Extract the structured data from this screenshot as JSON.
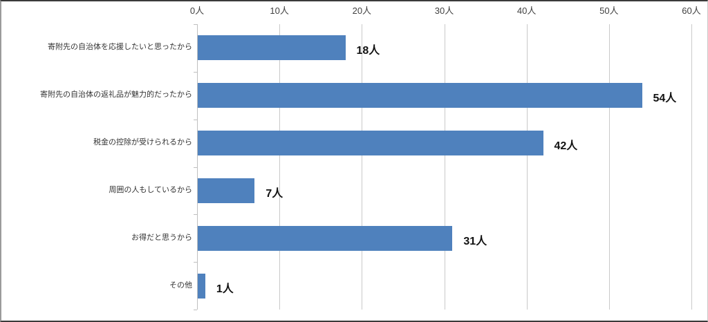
{
  "chart_data": {
    "type": "bar",
    "orientation": "horizontal",
    "title": "",
    "categories": [
      "寄附先の自治体を応援したいと思ったから",
      "寄附先の自治体の返礼品が魅力的だったから",
      "税金の控除が受けられるから",
      "周囲の人もしているから",
      "お得だと思うから",
      "その他"
    ],
    "values": [
      18,
      54,
      42,
      7,
      31,
      1
    ],
    "data_labels": [
      "18人",
      "54人",
      "42人",
      "7人",
      "31人",
      "1人"
    ],
    "unit": "人",
    "x_axis": {
      "position": "top",
      "tick_labels": [
        "0人",
        "10人",
        "20人",
        "30人",
        "40人",
        "50人",
        "60人"
      ],
      "tick_values": [
        0,
        10,
        20,
        30,
        40,
        50,
        60
      ],
      "range": [
        0,
        60
      ]
    },
    "grid": "vertical-on",
    "legend": "none",
    "colors": {
      "bar": "#4f81bd",
      "gridline": "#c9c9c9",
      "axis": "#bfbfbf",
      "tick_text": "#404040",
      "category_text": "#333333",
      "value_text": "#111111",
      "background": "#ffffff"
    }
  }
}
